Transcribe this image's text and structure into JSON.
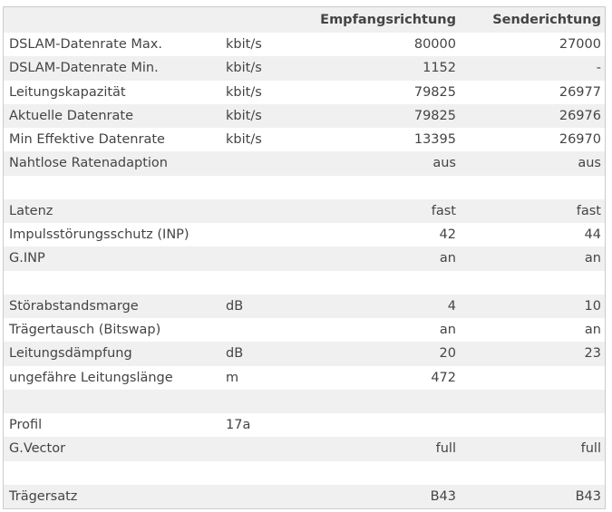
{
  "table": {
    "header": {
      "downstream": "Empfangsrichtung",
      "upstream": "Senderichtung"
    },
    "rows": [
      {
        "label": "DSLAM-Datenrate Max.",
        "unit": "kbit/s",
        "down": 80000,
        "up": 27000
      },
      {
        "label": "DSLAM-Datenrate Min.",
        "unit": "kbit/s",
        "down": 1152,
        "up": "-"
      },
      {
        "label": "Leitungskapazität",
        "unit": "kbit/s",
        "down": 79825,
        "up": 26977
      },
      {
        "label": "Aktuelle Datenrate",
        "unit": "kbit/s",
        "down": 79825,
        "up": 26976
      },
      {
        "label": "Min Effektive Datenrate",
        "unit": "kbit/s",
        "down": 13395,
        "up": 26970
      },
      {
        "label": "Nahtlose Ratenadaption",
        "down": "aus",
        "up": "aus"
      },
      null,
      {
        "label": "Latenz",
        "down": "fast",
        "up": "fast"
      },
      {
        "label": "Impulsstörungsschutz (INP)",
        "down": 42,
        "up": 44
      },
      {
        "label": "G.INP",
        "down": "an",
        "up": "an"
      },
      null,
      {
        "label": "Störabstandsmarge",
        "unit": "dB",
        "down": 4,
        "up": 10
      },
      {
        "label": "Trägertausch (Bitswap)",
        "down": "an",
        "up": "an"
      },
      {
        "label": "Leitungsdämpfung",
        "unit": "dB",
        "down": 20,
        "up": 23
      },
      {
        "label": "ungefähre Leitungslänge",
        "unit": "m",
        "down": 472
      },
      null,
      {
        "label": "Profil",
        "unit": "17a"
      },
      {
        "label": "G.Vector",
        "down": "full",
        "up": "full"
      },
      null,
      {
        "label": "Trägersatz",
        "down": "B43",
        "up": "B43"
      }
    ]
  }
}
